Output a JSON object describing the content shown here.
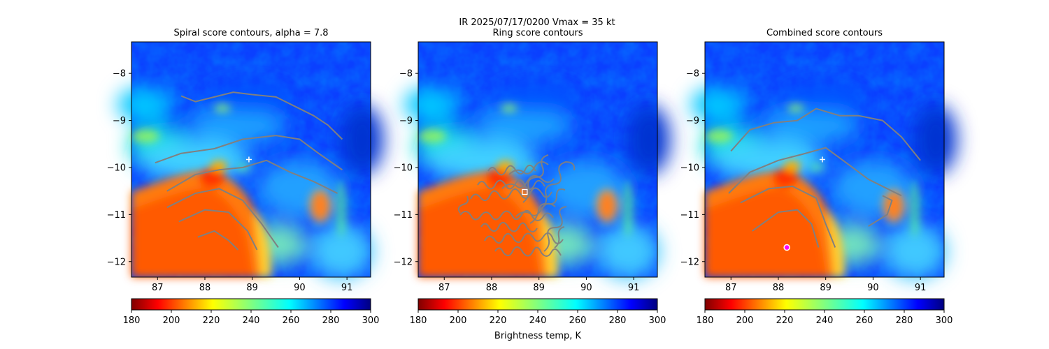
{
  "figure": {
    "suptitle_line1": "IR  2025/07/17/0200    Vmax = 35 kt"
  },
  "colorbar": {
    "label": "Brightness temp, K",
    "range": [
      180,
      300
    ],
    "ticks": [
      "180",
      "200",
      "220",
      "240",
      "260",
      "280",
      "300"
    ],
    "colormap": "jet_r"
  },
  "chart_data": [
    {
      "type": "heatmap",
      "title": "Spiral score contours, alpha =  7.8",
      "xlim": [
        86.45,
        91.5
      ],
      "ylim": [
        -12.33,
        -7.33
      ],
      "xticks": [
        "87",
        "88",
        "89",
        "90",
        "91"
      ],
      "yticks": [
        "−8",
        "−9",
        "−10",
        "−11",
        "−12"
      ],
      "marker": {
        "symbol": "+",
        "color": "#ffffff",
        "x": 88.93,
        "y": -9.83
      },
      "contours": [
        [
          [
            87.5,
            -8.48
          ],
          [
            87.8,
            -8.6
          ],
          [
            88.2,
            -8.5
          ],
          [
            88.6,
            -8.4
          ],
          [
            89.0,
            -8.45
          ],
          [
            89.5,
            -8.5
          ],
          [
            89.9,
            -8.7
          ],
          [
            90.3,
            -8.9
          ],
          [
            90.6,
            -9.1
          ],
          [
            90.9,
            -9.4
          ]
        ],
        [
          [
            86.95,
            -9.9
          ],
          [
            87.5,
            -9.7
          ],
          [
            88.2,
            -9.6
          ],
          [
            88.8,
            -9.4
          ],
          [
            89.5,
            -9.32
          ],
          [
            90.0,
            -9.4
          ],
          [
            90.4,
            -9.7
          ],
          [
            90.9,
            -10.05
          ]
        ],
        [
          [
            87.2,
            -10.5
          ],
          [
            87.8,
            -10.15
          ],
          [
            88.3,
            -10.05
          ],
          [
            88.8,
            -10.0
          ],
          [
            89.3,
            -9.85
          ],
          [
            89.8,
            -10.1
          ],
          [
            90.3,
            -10.3
          ],
          [
            90.8,
            -10.55
          ]
        ],
        [
          [
            87.2,
            -10.85
          ],
          [
            87.8,
            -10.55
          ],
          [
            88.3,
            -10.45
          ],
          [
            88.8,
            -10.7
          ],
          [
            89.2,
            -11.2
          ],
          [
            89.55,
            -11.7
          ]
        ],
        [
          [
            87.45,
            -11.15
          ],
          [
            88.0,
            -10.9
          ],
          [
            88.5,
            -10.95
          ],
          [
            88.9,
            -11.35
          ],
          [
            89.1,
            -11.75
          ]
        ],
        [
          [
            87.85,
            -11.48
          ],
          [
            88.2,
            -11.35
          ],
          [
            88.5,
            -11.55
          ],
          [
            88.7,
            -11.75
          ]
        ]
      ]
    },
    {
      "type": "heatmap",
      "title": "Ring score contours",
      "xlim": [
        86.45,
        91.5
      ],
      "ylim": [
        -12.33,
        -7.33
      ],
      "xticks": [
        "87",
        "88",
        "89",
        "90",
        "91"
      ],
      "yticks": [
        "−8",
        "−9",
        "−10",
        "−11",
        "−12"
      ],
      "marker": {
        "symbol": "square",
        "color": "#ffffff",
        "x": 88.7,
        "y": -10.52
      },
      "contours": []
    },
    {
      "type": "heatmap",
      "title": "Combined score contours",
      "xlim": [
        86.45,
        91.5
      ],
      "ylim": [
        -12.33,
        -7.33
      ],
      "xticks": [
        "87",
        "88",
        "89",
        "90",
        "91"
      ],
      "yticks": [
        "−8",
        "−9",
        "−10",
        "−11",
        "−12"
      ],
      "marker": {
        "symbol": "+",
        "color": "#ffffff",
        "x": 88.93,
        "y": -9.83
      },
      "marker2": {
        "symbol": "circle",
        "color": "#ff00ff",
        "x": 88.18,
        "y": -11.7
      },
      "contours": [
        [
          [
            87.0,
            -9.65
          ],
          [
            87.4,
            -9.2
          ],
          [
            87.9,
            -9.05
          ],
          [
            88.4,
            -9.0
          ],
          [
            88.8,
            -8.75
          ],
          [
            89.3,
            -8.9
          ],
          [
            89.7,
            -8.9
          ],
          [
            90.2,
            -9.0
          ],
          [
            90.6,
            -9.35
          ],
          [
            91.0,
            -9.85
          ]
        ],
        [
          [
            86.95,
            -10.55
          ],
          [
            87.4,
            -10.1
          ],
          [
            88.0,
            -9.85
          ],
          [
            88.5,
            -9.72
          ],
          [
            89.0,
            -9.58
          ],
          [
            89.5,
            -9.95
          ],
          [
            89.9,
            -10.25
          ],
          [
            90.3,
            -10.45
          ],
          [
            90.6,
            -10.6
          ]
        ],
        [
          [
            87.2,
            -10.75
          ],
          [
            87.8,
            -10.45
          ],
          [
            88.3,
            -10.4
          ],
          [
            88.8,
            -10.65
          ],
          [
            89.0,
            -11.2
          ],
          [
            89.2,
            -11.7
          ]
        ],
        [
          [
            87.45,
            -11.35
          ],
          [
            88.0,
            -10.95
          ],
          [
            88.4,
            -10.9
          ],
          [
            88.7,
            -11.2
          ],
          [
            88.85,
            -11.7
          ]
        ],
        [
          [
            89.9,
            -11.25
          ],
          [
            90.3,
            -11.0
          ],
          [
            90.4,
            -10.7
          ],
          [
            90.2,
            -10.6
          ]
        ]
      ]
    }
  ]
}
